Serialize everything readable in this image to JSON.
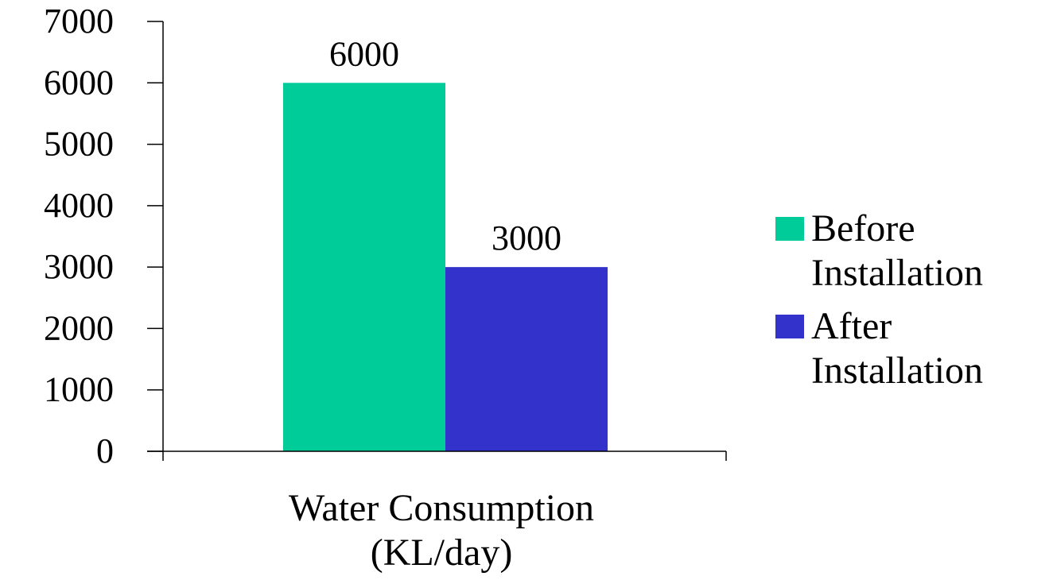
{
  "chart_data": {
    "type": "bar",
    "categories": [
      "Water Consumption (KL/day)"
    ],
    "category_lines": [
      "Water Consumption",
      "(KL/day)"
    ],
    "series": [
      {
        "name_lines": [
          "Before",
          "Installation"
        ],
        "values": [
          6000
        ],
        "color": "#00CC99"
      },
      {
        "name_lines": [
          "After",
          "Installation"
        ],
        "values": [
          3000
        ],
        "color": "#3333CC"
      }
    ],
    "data_labels": [
      "6000",
      "3000"
    ],
    "yticks": [
      0,
      1000,
      2000,
      3000,
      4000,
      5000,
      6000,
      7000
    ],
    "ylim": [
      0,
      7000
    ],
    "grid": false,
    "legend_position": "right"
  }
}
